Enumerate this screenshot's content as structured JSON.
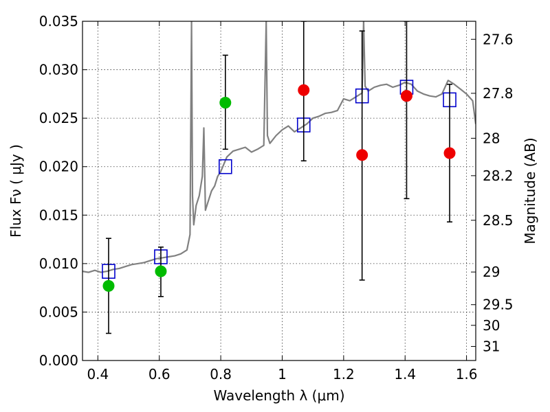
{
  "chart_data": {
    "type": "scatter",
    "xlabel": "Wavelength  λ (μm)",
    "ylabel": "Flux  Fν  ( μJy )",
    "ylabel_right": "Magnitude (AB)",
    "xlim": [
      0.35,
      1.63
    ],
    "ylim": [
      0.0,
      0.035
    ],
    "grid": true,
    "x_ticks": [
      0.4,
      0.6,
      0.8,
      1.0,
      1.2,
      1.4,
      1.6
    ],
    "x_tick_labels": [
      "0.4",
      "0.6",
      "0.8",
      "1",
      "1.2",
      "1.4",
      "1.6"
    ],
    "y_ticks": [
      0.0,
      0.005,
      0.01,
      0.015,
      0.02,
      0.025,
      0.03,
      0.035
    ],
    "y_tick_labels": [
      "0.000",
      "0.005",
      "0.010",
      "0.015",
      "0.020",
      "0.025",
      "0.030",
      "0.035"
    ],
    "right_ticks": [
      {
        "label": "27.6",
        "flux": 0.03314
      },
      {
        "label": "27.8",
        "flux": 0.02757
      },
      {
        "label": "28",
        "flux": 0.02293
      },
      {
        "label": "28.2",
        "flux": 0.01907
      },
      {
        "label": "28.5",
        "flux": 0.01447
      },
      {
        "label": "29",
        "flux": 0.00913
      },
      {
        "label": "29.5",
        "flux": 0.00576
      },
      {
        "label": "30",
        "flux": 0.00363
      },
      {
        "label": "31",
        "flux": 0.00145
      }
    ],
    "colors": {
      "template": "#808080",
      "model": "#0000cc",
      "detection": "#00bb00",
      "red_points": "#ee0000",
      "errorbar": "#000000"
    },
    "series": [
      {
        "kind": "line",
        "x": [
          0.35,
          0.37,
          0.39,
          0.41,
          0.43,
          0.45,
          0.47,
          0.49,
          0.51,
          0.53,
          0.55,
          0.57,
          0.59,
          0.61,
          0.63,
          0.65,
          0.67,
          0.69,
          0.7,
          0.705,
          0.708,
          0.712,
          0.716,
          0.72,
          0.73,
          0.74,
          0.745,
          0.75,
          0.76,
          0.77,
          0.78,
          0.79,
          0.8,
          0.82,
          0.84,
          0.86,
          0.88,
          0.9,
          0.92,
          0.94,
          0.948,
          0.952,
          0.96,
          0.98,
          1.0,
          1.02,
          1.04,
          1.06,
          1.08,
          1.1,
          1.12,
          1.14,
          1.16,
          1.18,
          1.2,
          1.22,
          1.24,
          1.26,
          1.265,
          1.27,
          1.28,
          1.29,
          1.3,
          1.32,
          1.34,
          1.36,
          1.38,
          1.4,
          1.42,
          1.44,
          1.46,
          1.48,
          1.5,
          1.52,
          1.54,
          1.56,
          1.58,
          1.6,
          1.62,
          1.63
        ],
        "y": [
          0.0092,
          0.0091,
          0.0093,
          0.0091,
          0.0092,
          0.0094,
          0.0095,
          0.0097,
          0.0099,
          0.01,
          0.0101,
          0.0103,
          0.0105,
          0.0106,
          0.0107,
          0.0108,
          0.011,
          0.0114,
          0.013,
          0.035,
          0.017,
          0.014,
          0.015,
          0.016,
          0.017,
          0.019,
          0.024,
          0.0155,
          0.0165,
          0.0175,
          0.018,
          0.019,
          0.0195,
          0.021,
          0.0216,
          0.0218,
          0.022,
          0.0215,
          0.0218,
          0.0222,
          0.035,
          0.0232,
          0.0224,
          0.0232,
          0.0238,
          0.0242,
          0.0236,
          0.024,
          0.0244,
          0.025,
          0.0252,
          0.0255,
          0.0256,
          0.0258,
          0.027,
          0.0268,
          0.0272,
          0.0276,
          0.035,
          0.0283,
          0.0278,
          0.028,
          0.0282,
          0.0284,
          0.0285,
          0.0282,
          0.0284,
          0.0287,
          0.0285,
          0.0278,
          0.0275,
          0.0273,
          0.0272,
          0.0275,
          0.0289,
          0.0285,
          0.028,
          0.0275,
          0.0268,
          0.0244
        ]
      },
      {
        "kind": "squares",
        "x": [
          0.435,
          0.605,
          0.815,
          1.07,
          1.26,
          1.405,
          1.545
        ],
        "y": [
          0.0092,
          0.0107,
          0.02,
          0.0243,
          0.0273,
          0.0282,
          0.0269
        ]
      },
      {
        "kind": "green_points",
        "x": [
          0.435,
          0.605,
          0.815
        ],
        "y": [
          0.0077,
          0.0092,
          0.0266
        ],
        "err_lo": [
          0.0028,
          0.0066,
          0.0218
        ],
        "err_hi": [
          0.0126,
          0.0117,
          0.0315
        ]
      },
      {
        "kind": "red_points",
        "x": [
          1.07,
          1.26,
          1.405,
          1.545
        ],
        "y": [
          0.0279,
          0.0212,
          0.0273,
          0.0214
        ],
        "err_lo": [
          0.0206,
          0.0083,
          0.0167,
          0.0143
        ],
        "err_hi": [
          0.035,
          0.034,
          0.035,
          0.0285
        ]
      }
    ]
  }
}
